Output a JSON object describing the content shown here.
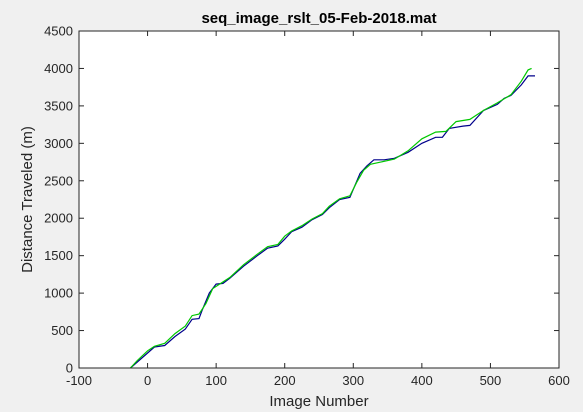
{
  "chart_data": {
    "type": "line",
    "title": "seq_image_rslt_05-Feb-2018.mat",
    "xlabel": "Image Number",
    "ylabel": "Distance Traveled (m)",
    "xlim": [
      -100,
      600
    ],
    "ylim": [
      0,
      4500
    ],
    "xticks": [
      -100,
      0,
      100,
      200,
      300,
      400,
      500,
      600
    ],
    "yticks": [
      0,
      500,
      1000,
      1500,
      2000,
      2500,
      3000,
      3500,
      4000,
      4500
    ],
    "grid": false,
    "series": [
      {
        "color": "#00008b",
        "x": [
          -25,
          -15,
          0,
          10,
          25,
          40,
          55,
          65,
          75,
          80,
          90,
          100,
          110,
          120,
          140,
          160,
          175,
          190,
          200,
          210,
          225,
          240,
          255,
          265,
          280,
          295,
          310,
          320,
          330,
          345,
          360,
          380,
          400,
          420,
          430,
          440,
          460,
          470,
          490,
          510,
          520,
          530,
          545,
          555,
          565
        ],
        "y": [
          0,
          80,
          200,
          280,
          300,
          420,
          520,
          650,
          660,
          780,
          1000,
          1120,
          1130,
          1200,
          1360,
          1500,
          1600,
          1630,
          1720,
          1820,
          1880,
          1980,
          2050,
          2140,
          2250,
          2280,
          2600,
          2700,
          2780,
          2780,
          2800,
          2880,
          3000,
          3080,
          3080,
          3200,
          3230,
          3240,
          3440,
          3520,
          3600,
          3640,
          3780,
          3900,
          3900
        ]
      },
      {
        "color": "#00c800",
        "x": [
          -25,
          -15,
          0,
          10,
          25,
          40,
          55,
          65,
          75,
          85,
          95,
          110,
          120,
          140,
          160,
          175,
          190,
          200,
          210,
          225,
          240,
          255,
          265,
          280,
          295,
          305,
          315,
          325,
          340,
          360,
          380,
          400,
          420,
          435,
          450,
          470,
          490,
          510,
          530,
          545,
          555,
          560
        ],
        "y": [
          0,
          100,
          230,
          290,
          330,
          460,
          560,
          700,
          720,
          860,
          1060,
          1150,
          1210,
          1380,
          1520,
          1620,
          1650,
          1760,
          1830,
          1900,
          1990,
          2060,
          2160,
          2260,
          2300,
          2480,
          2640,
          2720,
          2750,
          2790,
          2900,
          3060,
          3150,
          3160,
          3290,
          3320,
          3440,
          3540,
          3650,
          3830,
          3980,
          4000
        ]
      }
    ]
  }
}
